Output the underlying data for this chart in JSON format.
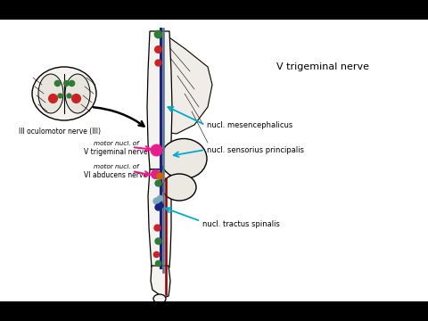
{
  "bg_color": "#ffffff",
  "black_bar_color": "#000000",
  "title": "V trigeminal nerve",
  "labels": {
    "nucl_mesencephalicus": "nucl. mesencephalicus",
    "nucl_sensorius": "nucl. sensorius principalis",
    "nucl_tractus": "nucl. tractus spinalis",
    "III_oculomotor": "III oculomotor nerve (III)",
    "motor_nucl_V_line1": "motor nucl. of",
    "motor_nucl_V_line2": "V trigeminal nerve",
    "motor_nucl_VI_line1": "motor nucl. of",
    "motor_nucl_VI_line2": "VI abducens nerve"
  },
  "cyan_color": "#00aacc",
  "pink_color": "#e91e8c",
  "blue_dark": "#1a237e",
  "blue_mid": "#546e8a",
  "red_dark": "#8b0000",
  "green_dark": "#2e7d32",
  "orange_col": "#cc6600",
  "red_bright": "#cc2222",
  "black": "#000000"
}
